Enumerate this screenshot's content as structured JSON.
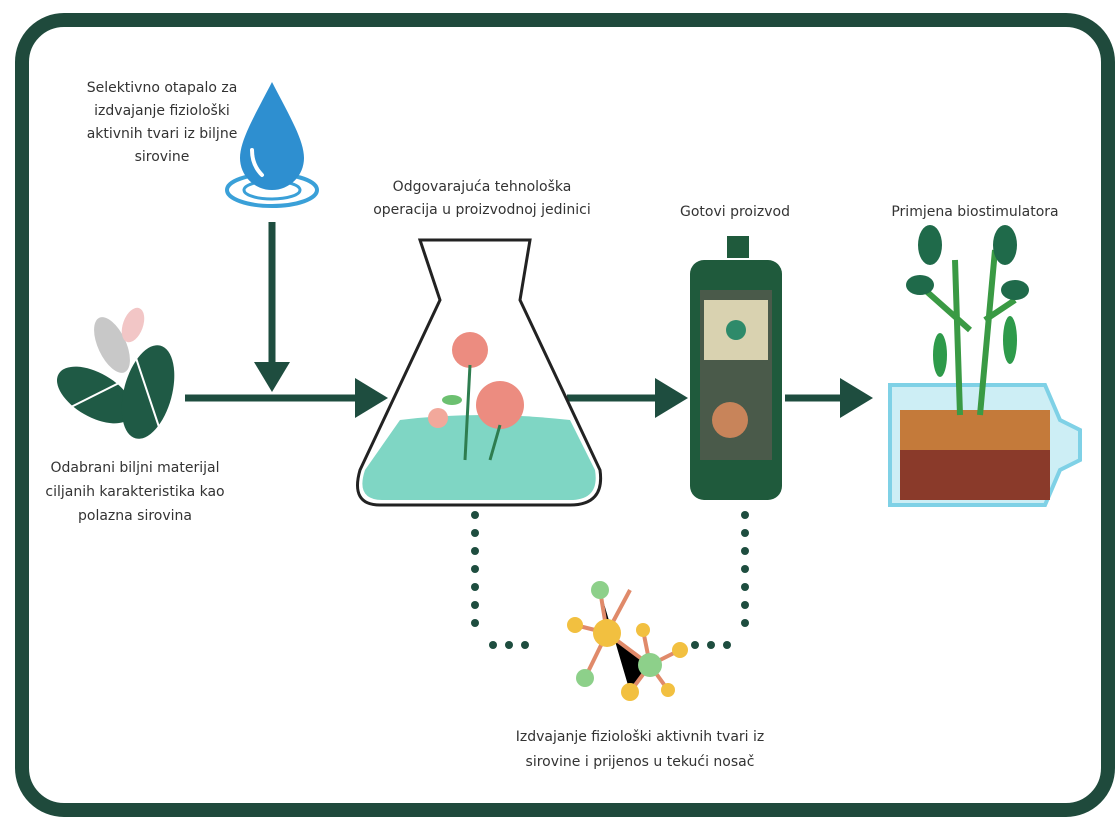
{
  "nodes": [
    {
      "lines": [
        "Selektivno otapalo za",
        "izdvajanje fiziološki",
        "aktivnih tvari iz biljne",
        "sirovine"
      ]
    },
    {
      "lines": [
        "Odgovarajuća tehnološka",
        "operacija u proizvodnoj jedinici"
      ]
    },
    {
      "lines": [
        "Gotovi proizvod"
      ]
    },
    {
      "lines": [
        "Primjena biostimulatora"
      ]
    },
    {
      "lines": [
        "Odabrani biljni materijal",
        "ciljanih karakteristika kao",
        "polazna sirovina"
      ]
    },
    {
      "lines": [
        "Izdvajanje fiziološki aktivnih tvari iz",
        "sirovine i prijenos u tekući nosač"
      ]
    }
  ]
}
